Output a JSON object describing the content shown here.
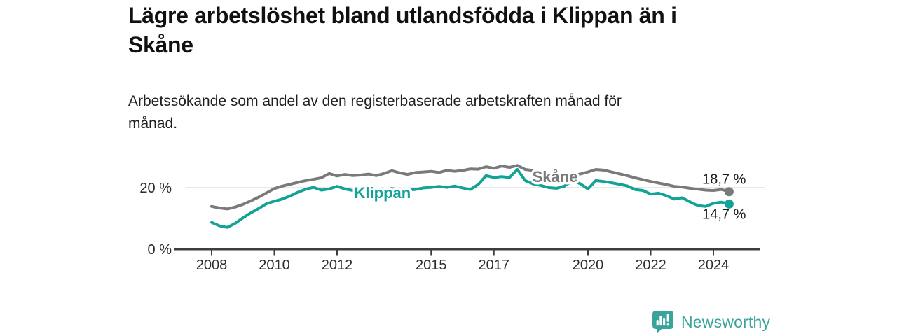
{
  "header": {
    "title_lines": [
      "Lägre arbetslöshet bland utlandsfödda i Klippan än i",
      "Skåne"
    ],
    "subtitle_lines": [
      "Arbetssökande som andel av den registerbaserade arbetskraften månad för",
      "månad."
    ]
  },
  "footer": {
    "brand": "Newsworthy",
    "logo_icon": "speech-bubble-bar-chart-icon",
    "brand_color": "#3AA39B"
  },
  "chart_data": {
    "type": "line",
    "title": "Lägre arbetslöshet bland utlandsfödda i Klippan än i Skåne",
    "subtitle": "Arbetssökande som andel av den registerbaserade arbetskraften månad för månad.",
    "x_unit": "year (monthly series shown, digitized quarterly)",
    "y_unit": "%",
    "xlim": [
      2007.6,
      2025.4
    ],
    "ylim": [
      0,
      30
    ],
    "grid": "single horizontal gridline at 20 %",
    "legend": "inline labels on lines",
    "x_ticks": [
      2008,
      2010,
      2012,
      2015,
      2017,
      2020,
      2022,
      2024
    ],
    "y_ticks": [
      {
        "value": 20,
        "label": "20 %",
        "gridline": true
      },
      {
        "value": 0,
        "label": "0 %",
        "gridline": false
      }
    ],
    "x": [
      2008.0,
      2008.25,
      2008.5,
      2008.75,
      2009.0,
      2009.25,
      2009.5,
      2009.75,
      2010.0,
      2010.25,
      2010.5,
      2010.75,
      2011.0,
      2011.25,
      2011.5,
      2011.75,
      2012.0,
      2012.25,
      2012.5,
      2012.75,
      2013.0,
      2013.25,
      2013.5,
      2013.75,
      2014.0,
      2014.25,
      2014.5,
      2014.75,
      2015.0,
      2015.25,
      2015.5,
      2015.75,
      2016.0,
      2016.25,
      2016.5,
      2016.75,
      2017.0,
      2017.25,
      2017.5,
      2017.75,
      2018.0,
      2018.25,
      2018.5,
      2018.75,
      2019.0,
      2019.25,
      2019.5,
      2019.75,
      2020.0,
      2020.25,
      2020.5,
      2020.75,
      2021.0,
      2021.25,
      2021.5,
      2021.75,
      2022.0,
      2022.25,
      2022.5,
      2022.75,
      2023.0,
      2023.25,
      2023.5,
      2023.75,
      2024.0,
      2024.25,
      2024.5
    ],
    "series": [
      {
        "name": "Skåne",
        "color": "#7A7A7A",
        "end_value": 18.7,
        "end_label": "18,7 %",
        "end_label_position": "above",
        "inline_label": {
          "x": 2018.95,
          "y": 23.6
        },
        "values": [
          13.9,
          13.4,
          13.1,
          13.7,
          14.6,
          15.7,
          16.9,
          18.3,
          19.7,
          20.5,
          21.1,
          21.7,
          22.3,
          22.7,
          23.2,
          24.6,
          23.8,
          24.3,
          23.9,
          24.1,
          24.4,
          23.9,
          24.6,
          25.5,
          24.8,
          24.3,
          24.9,
          25.1,
          25.3,
          24.9,
          25.6,
          25.3,
          25.6,
          26.1,
          26.0,
          26.8,
          26.3,
          27.0,
          26.6,
          27.2,
          25.9,
          25.6,
          25.2,
          24.8,
          24.5,
          24.2,
          24.0,
          24.4,
          25.1,
          25.9,
          25.7,
          25.1,
          24.5,
          23.9,
          23.2,
          22.6,
          22.0,
          21.5,
          21.0,
          20.4,
          20.2,
          19.8,
          19.5,
          19.2,
          19.1,
          19.4,
          18.7
        ]
      },
      {
        "name": "Klippan",
        "color": "#12A296",
        "end_value": 14.7,
        "end_label": "14,7 %",
        "end_label_position": "below",
        "inline_label": {
          "x": 2013.45,
          "y": 18.4
        },
        "values": [
          8.7,
          7.6,
          7.1,
          8.4,
          10.2,
          11.8,
          13.2,
          14.8,
          15.6,
          16.3,
          17.3,
          18.5,
          19.5,
          20.1,
          19.2,
          19.6,
          20.4,
          19.6,
          19.1,
          19.4,
          19.6,
          19.3,
          19.5,
          19.7,
          19.4,
          19.3,
          19.4,
          19.9,
          20.1,
          20.4,
          20.1,
          20.5,
          19.9,
          19.4,
          21.0,
          23.9,
          23.3,
          23.6,
          23.3,
          25.9,
          22.3,
          21.2,
          20.7,
          20.0,
          19.8,
          20.5,
          22.2,
          21.3,
          19.6,
          22.3,
          22.0,
          21.6,
          21.1,
          20.6,
          19.4,
          19.1,
          17.9,
          18.2,
          17.4,
          16.3,
          16.7,
          15.4,
          14.2,
          13.9,
          14.9,
          15.3,
          14.7
        ]
      }
    ]
  }
}
